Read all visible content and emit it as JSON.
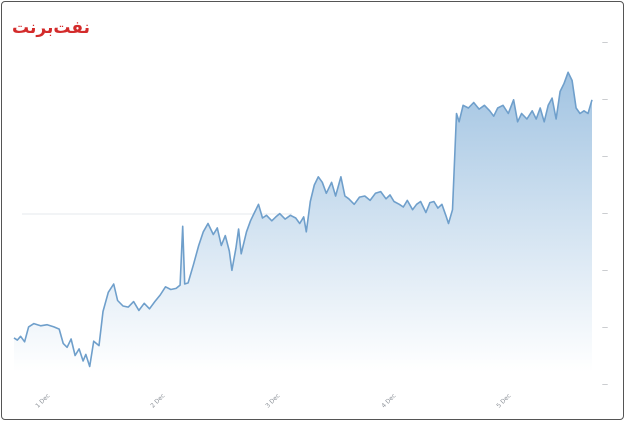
{
  "chart_data": {
    "type": "area",
    "title": "نفت‌برنت",
    "xlabel": "",
    "ylabel": "",
    "grid": false,
    "legend": "none",
    "x_ticks": [
      "1 Dec",
      "2 Dec",
      "3 Dec",
      "4 Dec",
      "5 Dec"
    ],
    "y_ticks": [
      "—",
      "—",
      "—",
      "—",
      "—",
      "—",
      "—"
    ],
    "ylim": [
      0,
      6
    ],
    "colors": {
      "line": "#6f9fcb",
      "fill_top": "#9cc0e0",
      "fill_bottom": "#ffffff",
      "title": "#d32b2b"
    },
    "series": [
      {
        "values": [
          [
            0.0,
            0.62
          ],
          [
            0.005,
            0.58
          ],
          [
            0.01,
            0.65
          ],
          [
            0.016,
            0.55
          ],
          [
            0.022,
            0.82
          ],
          [
            0.03,
            0.88
          ],
          [
            0.04,
            0.84
          ],
          [
            0.05,
            0.86
          ],
          [
            0.06,
            0.82
          ],
          [
            0.068,
            0.78
          ],
          [
            0.074,
            0.52
          ],
          [
            0.08,
            0.45
          ],
          [
            0.086,
            0.6
          ],
          [
            0.092,
            0.3
          ],
          [
            0.098,
            0.42
          ],
          [
            0.104,
            0.2
          ],
          [
            0.108,
            0.32
          ],
          [
            0.114,
            0.1
          ],
          [
            0.12,
            0.56
          ],
          [
            0.128,
            0.48
          ],
          [
            0.134,
            1.1
          ],
          [
            0.142,
            1.45
          ],
          [
            0.15,
            1.6
          ],
          [
            0.156,
            1.3
          ],
          [
            0.164,
            1.2
          ],
          [
            0.172,
            1.18
          ],
          [
            0.18,
            1.28
          ],
          [
            0.188,
            1.12
          ],
          [
            0.196,
            1.25
          ],
          [
            0.204,
            1.15
          ],
          [
            0.212,
            1.28
          ],
          [
            0.22,
            1.4
          ],
          [
            0.228,
            1.55
          ],
          [
            0.236,
            1.5
          ],
          [
            0.244,
            1.52
          ],
          [
            0.25,
            1.58
          ],
          [
            0.254,
            2.65
          ],
          [
            0.257,
            1.6
          ],
          [
            0.262,
            1.62
          ],
          [
            0.27,
            1.95
          ],
          [
            0.278,
            2.3
          ],
          [
            0.285,
            2.55
          ],
          [
            0.292,
            2.7
          ],
          [
            0.3,
            2.5
          ],
          [
            0.306,
            2.62
          ],
          [
            0.312,
            2.3
          ],
          [
            0.318,
            2.48
          ],
          [
            0.324,
            2.2
          ],
          [
            0.328,
            1.85
          ],
          [
            0.334,
            2.25
          ],
          [
            0.338,
            2.6
          ],
          [
            0.342,
            2.15
          ],
          [
            0.35,
            2.55
          ],
          [
            0.356,
            2.75
          ],
          [
            0.362,
            2.9
          ],
          [
            0.368,
            3.05
          ],
          [
            0.374,
            2.8
          ],
          [
            0.38,
            2.85
          ],
          [
            0.388,
            2.75
          ],
          [
            0.394,
            2.82
          ],
          [
            0.4,
            2.88
          ],
          [
            0.408,
            2.78
          ],
          [
            0.416,
            2.85
          ],
          [
            0.424,
            2.8
          ],
          [
            0.43,
            2.7
          ],
          [
            0.436,
            2.82
          ],
          [
            0.44,
            2.55
          ],
          [
            0.446,
            3.1
          ],
          [
            0.452,
            3.4
          ],
          [
            0.458,
            3.55
          ],
          [
            0.464,
            3.45
          ],
          [
            0.47,
            3.25
          ],
          [
            0.478,
            3.45
          ],
          [
            0.484,
            3.2
          ],
          [
            0.492,
            3.55
          ],
          [
            0.498,
            3.2
          ],
          [
            0.504,
            3.15
          ],
          [
            0.512,
            3.05
          ],
          [
            0.52,
            3.18
          ],
          [
            0.528,
            3.2
          ],
          [
            0.536,
            3.12
          ],
          [
            0.544,
            3.25
          ],
          [
            0.552,
            3.28
          ],
          [
            0.56,
            3.15
          ],
          [
            0.566,
            3.22
          ],
          [
            0.572,
            3.1
          ],
          [
            0.58,
            3.05
          ],
          [
            0.586,
            3.0
          ],
          [
            0.592,
            3.12
          ],
          [
            0.6,
            2.95
          ],
          [
            0.606,
            3.05
          ],
          [
            0.612,
            3.1
          ],
          [
            0.62,
            2.9
          ],
          [
            0.626,
            3.08
          ],
          [
            0.632,
            3.1
          ],
          [
            0.638,
            2.98
          ],
          [
            0.644,
            3.05
          ],
          [
            0.65,
            2.85
          ],
          [
            0.654,
            2.7
          ],
          [
            0.66,
            2.95
          ],
          [
            0.666,
            4.7
          ],
          [
            0.67,
            4.55
          ],
          [
            0.676,
            4.85
          ],
          [
            0.684,
            4.8
          ],
          [
            0.692,
            4.9
          ],
          [
            0.7,
            4.78
          ],
          [
            0.708,
            4.85
          ],
          [
            0.716,
            4.75
          ],
          [
            0.722,
            4.65
          ],
          [
            0.728,
            4.8
          ],
          [
            0.736,
            4.85
          ],
          [
            0.744,
            4.7
          ],
          [
            0.752,
            4.95
          ],
          [
            0.758,
            4.55
          ],
          [
            0.764,
            4.7
          ],
          [
            0.772,
            4.6
          ],
          [
            0.78,
            4.75
          ],
          [
            0.786,
            4.6
          ],
          [
            0.792,
            4.8
          ],
          [
            0.798,
            4.55
          ],
          [
            0.804,
            4.85
          ],
          [
            0.81,
            4.98
          ],
          [
            0.816,
            4.6
          ],
          [
            0.822,
            5.1
          ],
          [
            0.828,
            5.25
          ],
          [
            0.834,
            5.45
          ],
          [
            0.84,
            5.3
          ],
          [
            0.846,
            4.8
          ],
          [
            0.852,
            4.7
          ],
          [
            0.858,
            4.75
          ],
          [
            0.864,
            4.7
          ],
          [
            0.87,
            4.95
          ]
        ]
      }
    ]
  }
}
